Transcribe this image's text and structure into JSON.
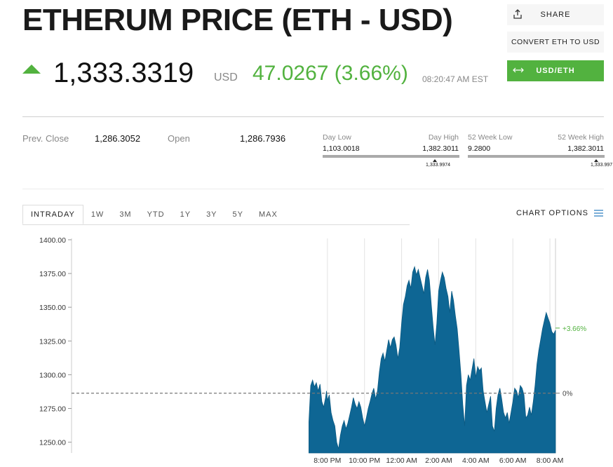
{
  "header": {
    "title": "ETHERUM PRICE (ETH - USD)",
    "price": "1,333.3319",
    "currency": "USD",
    "change": "47.0267 (3.66%)",
    "time": "08:20:47 AM EST",
    "direction_icon": "up-arrow-icon"
  },
  "buttons": {
    "share": "SHARE",
    "convert": "CONVERT ETH TO USD",
    "usd_eth": "USD/ETH"
  },
  "stats": {
    "prev_close_label": "Prev. Close",
    "prev_close": "1,286.3052",
    "open_label": "Open",
    "open": "1,286.7936",
    "day_low_label": "Day Low",
    "day_low": "1,103.0018",
    "day_high_label": "Day High",
    "day_high": "1,382.3011",
    "day_current": "1,333.9974",
    "week52_low_label": "52 Week Low",
    "week52_low": "9.2800",
    "week52_high_label": "52 Week High",
    "week52_high": "1,382.3011",
    "week52_current": "1,333.997"
  },
  "tabs": [
    "INTRADAY",
    "1W",
    "3M",
    "YTD",
    "1Y",
    "3Y",
    "5Y",
    "MAX"
  ],
  "active_tab": "INTRADAY",
  "chart_options_label": "CHART OPTIONS",
  "colors": {
    "accent_green": "#52b23f",
    "chart_fill": "#0e6694",
    "text_muted": "#888888"
  },
  "chart_data": {
    "type": "area",
    "ylim": [
      1242,
      1401
    ],
    "yticks": [
      1400,
      1375,
      1350,
      1325,
      1300,
      1275,
      1250
    ],
    "ytick_labels": [
      "1400.00",
      "1375.00",
      "1350.00",
      "1325.00",
      "1300.00",
      "1275.00",
      "1250.00"
    ],
    "xlim_hours": [
      6.2,
      32.3
    ],
    "xticks": [
      {
        "hour": 20,
        "label": "8:00 PM"
      },
      {
        "hour": 22,
        "label": "10:00 PM"
      },
      {
        "hour": 24,
        "label": "12:00 AM"
      },
      {
        "hour": 26,
        "label": "2:00 AM"
      },
      {
        "hour": 28,
        "label": "4:00 AM"
      },
      {
        "hour": 30,
        "label": "6:00 AM"
      },
      {
        "hour": 32,
        "label": "8:00 AM"
      }
    ],
    "reference_line": {
      "value": 1286.3,
      "label": "0%"
    },
    "last_value_label": "+3.66%",
    "series": [
      {
        "points": [
          [
            6.2,
            1265
          ],
          [
            6.3,
            1292
          ],
          [
            6.4,
            1296
          ],
          [
            6.5,
            1291
          ],
          [
            6.6,
            1294
          ],
          [
            6.7,
            1288
          ],
          [
            6.8,
            1293
          ],
          [
            6.9,
            1280
          ],
          [
            7.0,
            1276
          ],
          [
            7.1,
            1283
          ],
          [
            7.15,
            1288
          ],
          [
            7.2,
            1281
          ],
          [
            7.3,
            1285
          ],
          [
            7.4,
            1272
          ],
          [
            7.5,
            1266
          ],
          [
            7.6,
            1262
          ],
          [
            7.7,
            1250
          ],
          [
            7.8,
            1245
          ],
          [
            7.9,
            1255
          ],
          [
            8.0,
            1262
          ],
          [
            8.1,
            1266
          ],
          [
            8.2,
            1260
          ],
          [
            8.3,
            1264
          ],
          [
            8.4,
            1270
          ],
          [
            8.5,
            1276
          ],
          [
            8.6,
            1283
          ],
          [
            8.7,
            1278
          ],
          [
            8.8,
            1275
          ],
          [
            8.9,
            1280
          ],
          [
            9.0,
            1276
          ],
          [
            9.1,
            1268
          ],
          [
            9.2,
            1262
          ],
          [
            9.3,
            1268
          ],
          [
            9.4,
            1275
          ],
          [
            9.5,
            1280
          ],
          [
            9.6,
            1286
          ],
          [
            9.7,
            1290
          ],
          [
            9.8,
            1282
          ],
          [
            9.9,
            1288
          ],
          [
            10.0,
            1302
          ],
          [
            10.1,
            1312
          ],
          [
            10.2,
            1316
          ],
          [
            10.3,
            1310
          ],
          [
            10.4,
            1318
          ],
          [
            10.5,
            1326
          ],
          [
            10.6,
            1320
          ],
          [
            10.7,
            1326
          ],
          [
            10.8,
            1328
          ],
          [
            10.9,
            1322
          ],
          [
            11.0,
            1312
          ],
          [
            11.1,
            1320
          ],
          [
            11.2,
            1338
          ],
          [
            11.3,
            1352
          ],
          [
            11.4,
            1358
          ],
          [
            11.5,
            1366
          ],
          [
            11.6,
            1370
          ],
          [
            11.7,
            1364
          ],
          [
            11.8,
            1376
          ],
          [
            11.9,
            1380
          ],
          [
            12.0,
            1374
          ],
          [
            12.1,
            1378
          ],
          [
            12.2,
            1372
          ],
          [
            12.3,
            1366
          ],
          [
            12.4,
            1360
          ],
          [
            12.5,
            1372
          ],
          [
            12.6,
            1378
          ],
          [
            12.7,
            1370
          ],
          [
            12.8,
            1352
          ],
          [
            12.9,
            1336
          ],
          [
            13.0,
            1322
          ],
          [
            13.1,
            1338
          ],
          [
            13.2,
            1362
          ],
          [
            13.3,
            1370
          ],
          [
            13.4,
            1376
          ],
          [
            13.5,
            1372
          ],
          [
            13.6,
            1364
          ],
          [
            13.7,
            1358
          ],
          [
            13.8,
            1346
          ],
          [
            13.9,
            1362
          ],
          [
            14.0,
            1355
          ],
          [
            14.1,
            1344
          ],
          [
            14.2,
            1334
          ],
          [
            14.3,
            1318
          ],
          [
            14.4,
            1300
          ],
          [
            14.5,
            1278
          ],
          [
            14.6,
            1262
          ],
          [
            14.7,
            1292
          ],
          [
            14.8,
            1300
          ],
          [
            14.9,
            1296
          ],
          [
            15.0,
            1304
          ],
          [
            15.1,
            1312
          ],
          [
            15.2,
            1298
          ],
          [
            15.3,
            1306
          ],
          [
            15.4,
            1303
          ],
          [
            15.5,
            1305
          ],
          [
            15.6,
            1288
          ],
          [
            15.7,
            1280
          ],
          [
            15.8,
            1272
          ],
          [
            15.9,
            1278
          ],
          [
            16.0,
            1284
          ],
          [
            16.1,
            1262
          ],
          [
            16.2,
            1258
          ],
          [
            16.3,
            1275
          ],
          [
            16.4,
            1285
          ],
          [
            16.5,
            1290
          ],
          [
            16.6,
            1282
          ],
          [
            16.7,
            1272
          ],
          [
            16.8,
            1268
          ],
          [
            16.9,
            1272
          ],
          [
            17.0,
            1264
          ],
          [
            17.1,
            1272
          ],
          [
            17.2,
            1280
          ],
          [
            17.3,
            1290
          ],
          [
            17.4,
            1288
          ],
          [
            17.5,
            1283
          ],
          [
            17.6,
            1292
          ],
          [
            17.7,
            1290
          ],
          [
            17.8,
            1285
          ],
          [
            17.9,
            1268
          ],
          [
            18.0,
            1270
          ],
          [
            18.1,
            1276
          ],
          [
            18.2,
            1270
          ],
          [
            18.3,
            1280
          ],
          [
            18.4,
            1292
          ],
          [
            18.5,
            1308
          ],
          [
            18.6,
            1318
          ],
          [
            18.7,
            1326
          ],
          [
            18.8,
            1334
          ],
          [
            18.9,
            1340
          ],
          [
            19.0,
            1346
          ],
          [
            19.1,
            1342
          ],
          [
            19.2,
            1338
          ],
          [
            19.3,
            1332
          ],
          [
            19.4,
            1330
          ],
          [
            19.5,
            1333
          ]
        ],
        "hour_offset": 12.8
      }
    ]
  }
}
